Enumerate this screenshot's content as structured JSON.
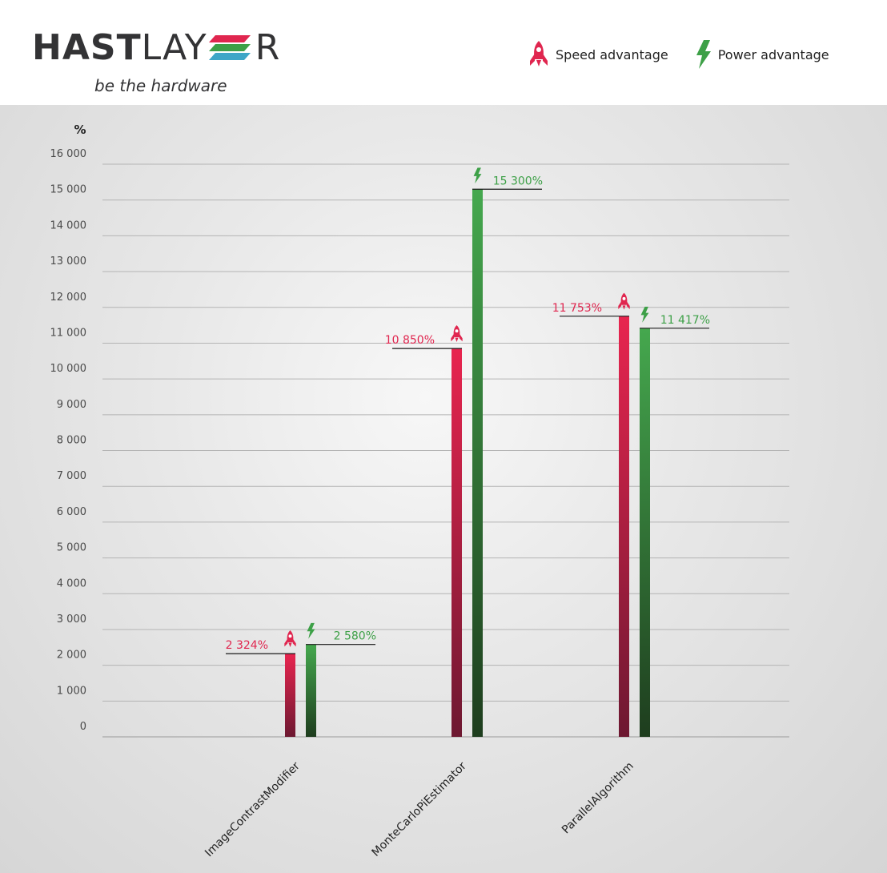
{
  "brand": {
    "logo_bold": "HAST",
    "logo_light_1": "LAY",
    "logo_light_2": "R",
    "tagline": "be the hardware",
    "colors": {
      "red": "#e0264f",
      "green": "#3da047",
      "blue": "#3ea6c7"
    }
  },
  "legend": {
    "speed": {
      "label": "Speed advantage",
      "icon": "rocket-icon",
      "color": "#e0264f"
    },
    "power": {
      "label": "Power advantage",
      "icon": "lightning-bolt-icon",
      "color": "#3da047"
    }
  },
  "chart_data": {
    "type": "bar",
    "ylabel": "%",
    "ylim": [
      0,
      16000
    ],
    "yticks": [
      0,
      1000,
      2000,
      3000,
      4000,
      5000,
      6000,
      7000,
      8000,
      9000,
      10000,
      11000,
      12000,
      13000,
      14000,
      15000,
      16000
    ],
    "ytick_labels": [
      "0",
      "1 000",
      "2 000",
      "3 000",
      "4 000",
      "5 000",
      "6 000",
      "7 000",
      "8 000",
      "9 000",
      "10 000",
      "11 000",
      "12 000",
      "13 000",
      "14 000",
      "15 000",
      "16 000"
    ],
    "grid": true,
    "legend_position": "top-right",
    "categories": [
      "ImageContrastModifier",
      "MonteCarloPiEstimator",
      "ParallelAlgorithm"
    ],
    "series": [
      {
        "name": "Speed advantage",
        "color": "#e0264f",
        "values": [
          2324,
          10850,
          11753
        ],
        "labels": [
          "2 324%",
          "10 850%",
          "11 753%"
        ]
      },
      {
        "name": "Power advantage",
        "color": "#3da047",
        "values": [
          2580,
          15300,
          11417
        ],
        "labels": [
          "2 580%",
          "15 300%",
          "11 417%"
        ]
      }
    ]
  }
}
